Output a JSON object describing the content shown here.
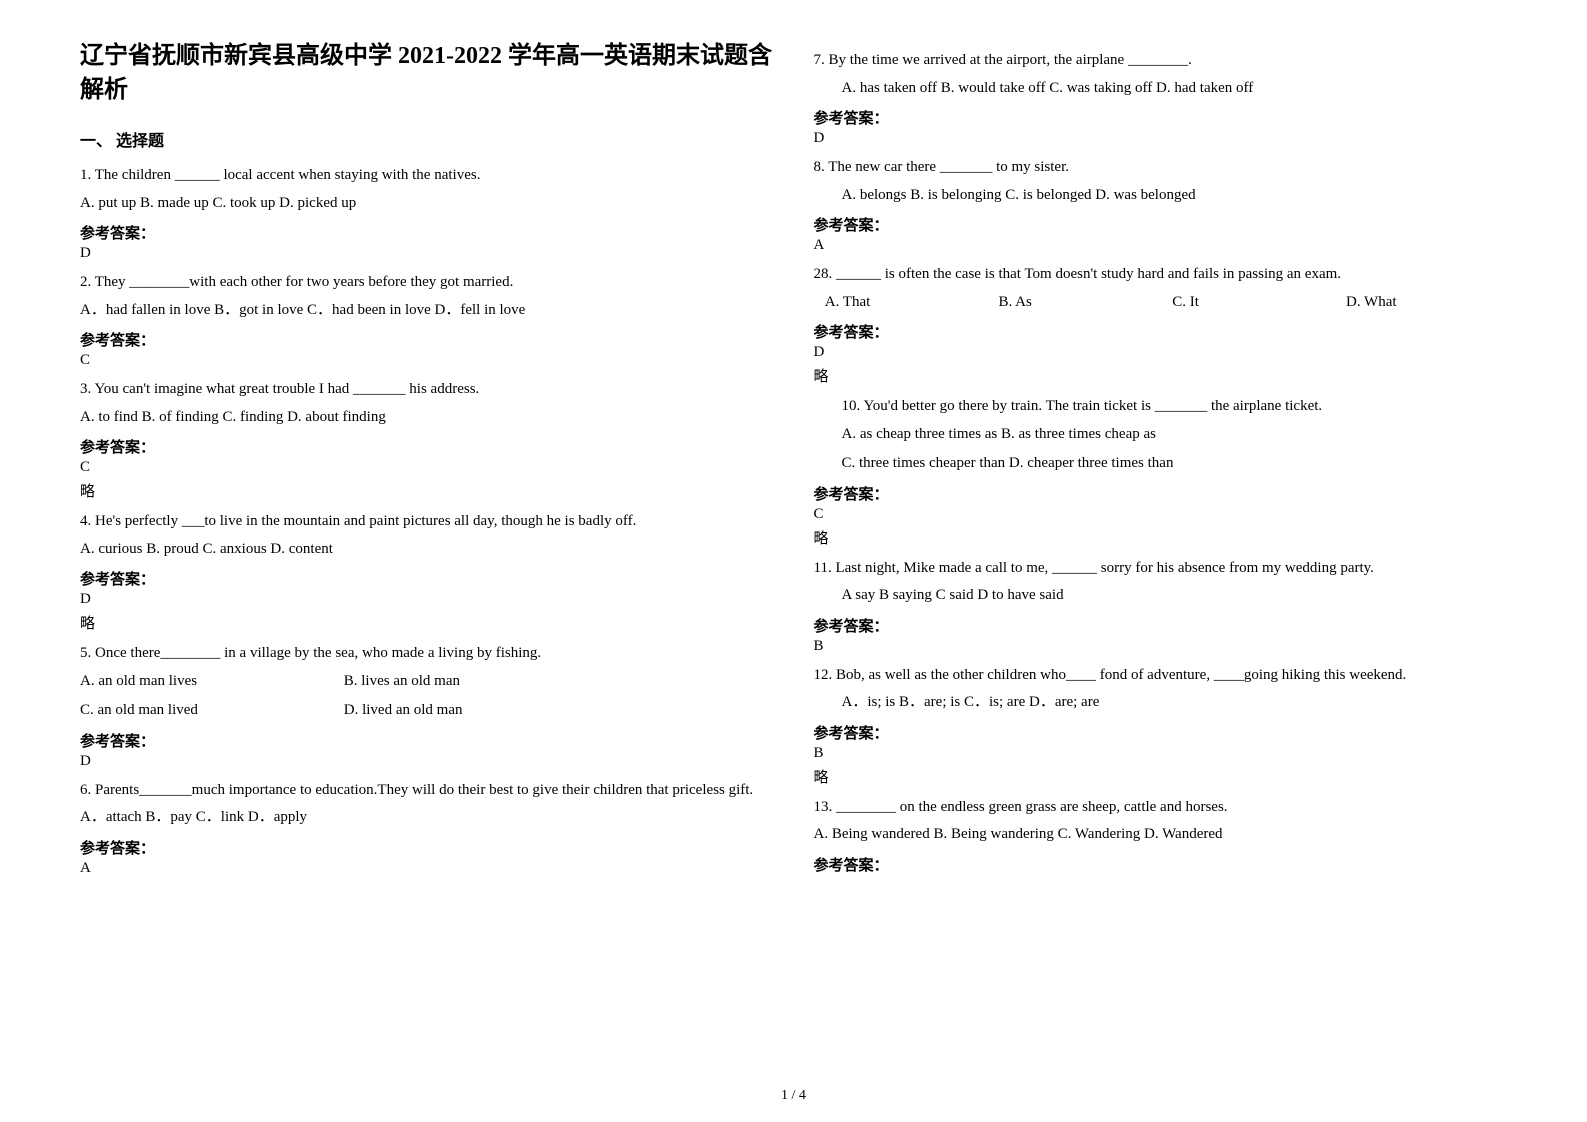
{
  "title": "辽宁省抚顺市新宾县高级中学 2021-2022 学年高一英语期末试题含解析",
  "section1": "一、 选择题",
  "ans_label": "参考答案：",
  "lue": "略",
  "footer": "1 / 4",
  "left": {
    "q1": {
      "stem": "1. The children ______ local accent when staying with the natives.",
      "opts": "A. put up    B. made up    C. took up    D. picked up",
      "ans": "D"
    },
    "q2": {
      "stem": "2. They ________with each other for two years before they got married.",
      "opts": "  A．had fallen in love   B．got in love   C．had been in love     D．fell in love",
      "ans": "C"
    },
    "q3": {
      "stem": "3. You can't imagine what great trouble I had _______ his address.",
      "opts": "A. to find      B. of finding    C. finding      D. about finding",
      "ans": "C"
    },
    "q4": {
      "stem": "4. He's perfectly ___to live in the mountain and paint pictures all day, though he is badly off.",
      "opts": "  A. curious      B. proud      C. anxious     D. content",
      "ans": "D"
    },
    "q5": {
      "stem": "5. Once there________ in a village by the sea, who made a living by fishing.",
      "optA": "A. an old man lives",
      "optB": "B. lives an old man",
      "optC": "C. an old man lived",
      "optD": "D. lived an old man",
      "ans": "D"
    },
    "q6": {
      "stem": "6. Parents_______much importance to education.They will do their best to give their children that priceless gift.",
      "opts": "A．attach      B．pay   C．link      D．apply",
      "ans": "A"
    }
  },
  "right": {
    "q7": {
      "stem": "7. By the time we arrived at the airport, the airplane ________.",
      "opts": "A. has taken off   B. would take off       C. was taking off         D. had taken off",
      "ans": "D"
    },
    "q8": {
      "stem": "8. The new car there _______ to my sister.",
      "opts": "A. belongs      B. is belonging    C. is belonged         D. was belonged",
      "ans": "A"
    },
    "q9": {
      "stem28": "28. ______ is often the case is that Tom doesn't study hard and fails in passing an exam.",
      "optA": "A. That",
      "optB": "B. As",
      "optC": "C. It",
      "optD": "D. What",
      "ans": "D"
    },
    "q10": {
      "stem": "10. You'd better go there by train. The train ticket is _______ the airplane ticket.",
      "optsAB": "A. as cheap three times as           B. as three times cheap as",
      "optsCD": "C. three times cheaper than    D. cheaper three times than",
      "ans": "C"
    },
    "q11": {
      "stem": "11. Last night, Mike made a call to me, ______ sorry for his absence from my wedding party.",
      "opts": "A say        B saying        C said          D to have said",
      "ans": "B"
    },
    "q12": {
      "stem": "12. Bob, as well as the other children who____ fond of adventure, ____going hiking this weekend.",
      "opts": "A．is; is      B．are; is   C．is; are      D．are; are",
      "ans": "B"
    },
    "q13": {
      "stem": "13. ________ on the endless green grass are sheep, cattle and horses.",
      "opts": "   A. Being wandered    B. Being wandering     C. Wandering    D. Wandered"
    }
  }
}
